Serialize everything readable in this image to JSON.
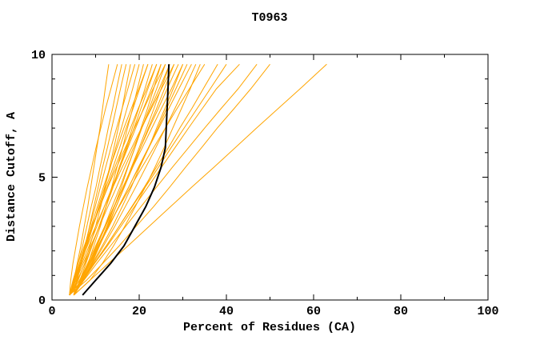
{
  "page": {
    "background": "#FFFFFF"
  },
  "chart_data": {
    "type": "line",
    "title": "T0963",
    "xlabel": "Percent of Residues (CA)",
    "ylabel": "Distance Cutoff, A",
    "xlim": [
      0,
      100
    ],
    "ylim": [
      0,
      10
    ],
    "xticks": [
      0,
      20,
      40,
      60,
      80,
      100
    ],
    "xminor": [
      10,
      30,
      50,
      70,
      90
    ],
    "yticks": [
      0,
      5,
      10
    ],
    "yminor": [
      1,
      2,
      3,
      4,
      6,
      7,
      8,
      9
    ],
    "grid": false,
    "legend": null,
    "colors": {
      "models": "#FFA500",
      "reference": "#000000",
      "axis": "#000000"
    },
    "y_levels": [
      0.2,
      0.8,
      1.5,
      2.2,
      3.0,
      3.8,
      4.6,
      5.4,
      6.2,
      7.0,
      7.8,
      8.6,
      9.6
    ],
    "model_curves_x": [
      [
        4,
        5.0,
        5.8,
        6.6,
        7.4,
        8.2,
        8.9,
        9.6,
        10.3,
        11.0,
        11.6,
        12.2,
        13
      ],
      [
        4,
        5.0,
        6.0,
        7.0,
        8.0,
        9.0,
        10.1,
        11.0,
        12.0,
        12.9,
        13.9,
        14.8,
        16
      ],
      [
        5,
        5.8,
        6.7,
        7.6,
        8.6,
        9.6,
        10.6,
        11.6,
        12.7,
        13.7,
        14.7,
        15.7,
        17
      ],
      [
        4,
        6.0,
        7.5,
        8.7,
        10.0,
        11.2,
        12.2,
        13.2,
        14.2,
        15.2,
        16.1,
        16.9,
        18
      ],
      [
        5,
        5.7,
        6.6,
        7.5,
        8.7,
        9.9,
        11.1,
        12.3,
        13.5,
        14.8,
        16.1,
        17.4,
        19
      ],
      [
        4,
        5.3,
        6.7,
        8.0,
        9.4,
        10.7,
        12.1,
        13.4,
        14.6,
        15.9,
        17.2,
        18.5,
        20
      ],
      [
        5,
        6.8,
        8.3,
        9.6,
        11.1,
        12.4,
        13.7,
        14.9,
        16.2,
        17.3,
        18.5,
        19.6,
        21
      ],
      [
        4,
        5.2,
        6.5,
        7.8,
        9.4,
        10.9,
        12.4,
        14.0,
        15.5,
        17.0,
        18.6,
        20.1,
        22
      ],
      [
        5,
        5.6,
        6.6,
        7.7,
        9.0,
        10.4,
        11.8,
        13.3,
        14.9,
        16.5,
        18.2,
        19.9,
        22
      ],
      [
        4,
        5.8,
        7.6,
        9.1,
        10.8,
        12.4,
        14.0,
        15.4,
        17.0,
        18.4,
        19.9,
        21.3,
        23
      ],
      [
        5,
        6.4,
        7.8,
        9.2,
        10.8,
        12.4,
        14.0,
        15.6,
        17.2,
        18.8,
        20.4,
        22.0,
        24
      ],
      [
        4,
        5.0,
        6.3,
        7.6,
        9.3,
        11.0,
        12.7,
        14.4,
        16.2,
        18.0,
        19.8,
        21.7,
        24
      ],
      [
        5,
        7.2,
        9.1,
        10.8,
        12.6,
        14.3,
        15.9,
        17.4,
        19.0,
        20.4,
        21.9,
        23.3,
        25
      ],
      [
        4,
        5.3,
        6.9,
        8.5,
        10.3,
        12.0,
        13.8,
        15.6,
        17.4,
        19.2,
        21.0,
        22.8,
        25
      ],
      [
        5,
        6.8,
        8.5,
        10.2,
        12.1,
        13.8,
        15.6,
        17.3,
        19.0,
        20.6,
        22.3,
        24.0,
        26
      ],
      [
        4,
        4.8,
        6.0,
        7.4,
        9.1,
        11.0,
        12.8,
        14.8,
        16.8,
        18.9,
        21.1,
        23.2,
        26
      ],
      [
        5,
        7.1,
        9.2,
        10.9,
        12.9,
        14.7,
        16.5,
        18.2,
        20.0,
        21.7,
        23.4,
        25.0,
        27
      ],
      [
        4,
        5.5,
        7.2,
        8.9,
        10.9,
        12.8,
        14.8,
        16.7,
        18.7,
        20.6,
        22.6,
        24.6,
        27
      ],
      [
        5,
        6.9,
        8.9,
        10.7,
        12.7,
        14.7,
        16.6,
        18.5,
        20.3,
        22.1,
        24.0,
        25.8,
        28
      ],
      [
        4,
        5.0,
        6.5,
        8.1,
        10.0,
        12.0,
        14.0,
        16.1,
        18.3,
        20.5,
        22.8,
        25.1,
        28
      ],
      [
        5,
        6.7,
        8.5,
        10.3,
        12.3,
        14.3,
        16.3,
        18.3,
        20.3,
        22.3,
        24.4,
        26.4,
        29
      ],
      [
        4,
        6.9,
        9.3,
        11.5,
        13.9,
        16.1,
        18.2,
        20.1,
        22.2,
        24.0,
        25.9,
        27.8,
        30
      ],
      [
        5,
        6.4,
        8.2,
        10.0,
        12.1,
        14.2,
        16.3,
        18.5,
        20.7,
        22.9,
        25.1,
        27.4,
        30
      ],
      [
        4,
        6.3,
        8.5,
        10.7,
        13.1,
        15.3,
        17.6,
        19.8,
        22.1,
        24.3,
        26.3,
        28.4,
        31
      ],
      [
        5,
        6.7,
        8.7,
        10.8,
        13.0,
        15.3,
        17.6,
        19.9,
        22.2,
        24.5,
        26.8,
        29.1,
        32
      ],
      [
        4,
        6.8,
        9.5,
        11.8,
        14.4,
        16.8,
        19.2,
        21.5,
        23.8,
        26.0,
        28.2,
        30.4,
        33
      ],
      [
        5,
        6.5,
        8.4,
        10.5,
        12.9,
        15.4,
        18.0,
        20.6,
        23.3,
        26.0,
        28.7,
        31.5,
        35
      ],
      [
        4,
        6.9,
        9.7,
        12.4,
        15.4,
        18.3,
        21.2,
        23.9,
        26.7,
        29.3,
        32.1,
        34.7,
        38
      ],
      [
        5,
        7.2,
        9.8,
        12.5,
        15.4,
        18.4,
        21.4,
        24.4,
        27.3,
        30.3,
        33.3,
        36.3,
        40
      ],
      [
        4,
        6.8,
        9.8,
        12.7,
        15.8,
        18.9,
        22.0,
        25.1,
        28.2,
        31.3,
        34.5,
        37.7,
        43
      ],
      [
        5,
        7.3,
        10.3,
        13.4,
        16.9,
        20.4,
        24.0,
        27.6,
        31.3,
        35.0,
        38.8,
        42.7,
        47
      ],
      [
        4,
        7.9,
        11.7,
        15.4,
        19.3,
        23.3,
        27.0,
        30.6,
        34.3,
        37.9,
        41.8,
        45.6,
        50
      ],
      [
        5,
        8.7,
        13.0,
        17.4,
        22.3,
        27.2,
        32.1,
        37.1,
        42.0,
        46.9,
        51.9,
        56.9,
        63
      ],
      [
        4,
        4.3,
        4.8,
        5.5,
        6.3,
        7.2,
        8.1,
        9.1,
        10.1,
        11.2,
        12.3,
        13.5,
        15
      ],
      [
        5,
        8.7,
        11.6,
        14.1,
        16.7,
        19.1,
        21.4,
        23.6,
        25.7,
        27.7,
        29.7,
        31.7,
        34
      ]
    ],
    "reference_curve_x": [
      7,
      10,
      13.5,
      16.5,
      19,
      21.5,
      23.5,
      25,
      26,
      26.2,
      26.4,
      26.6,
      26.8
    ]
  }
}
